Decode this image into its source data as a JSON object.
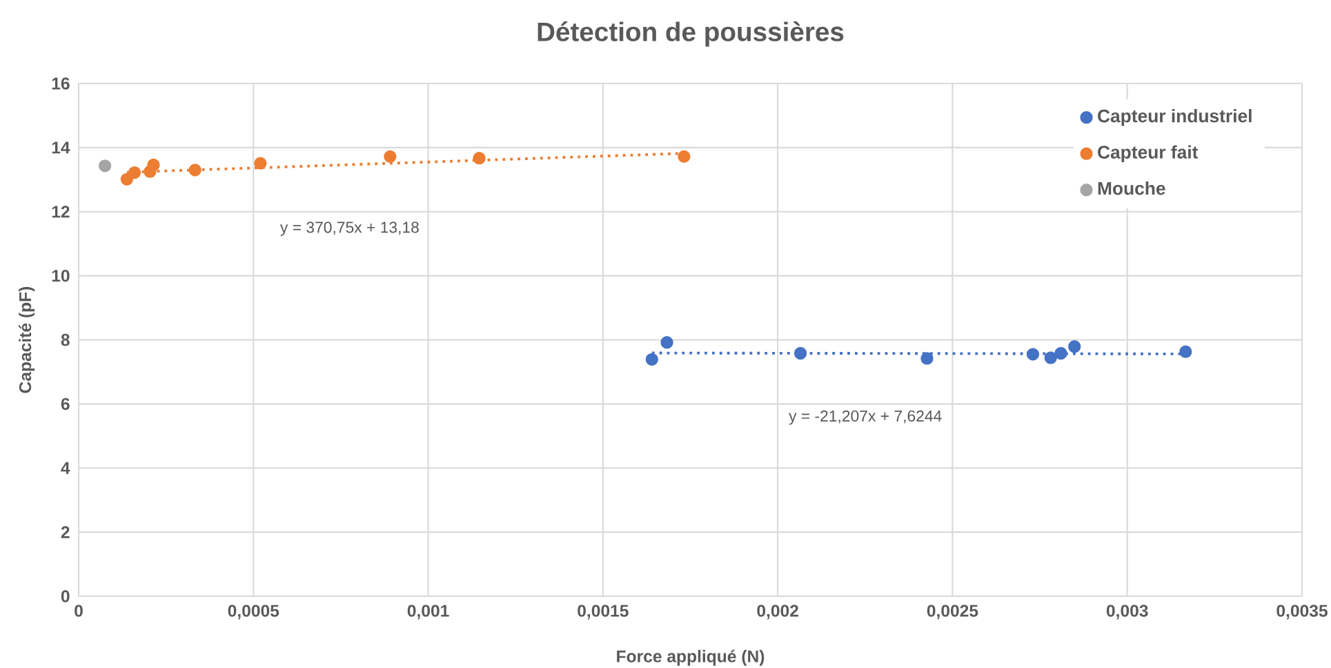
{
  "chart_data": {
    "type": "scatter",
    "title": "Détection de poussières",
    "xlabel": "Force appliqué (N)",
    "ylabel": "Capacité (pF)",
    "series": [
      {
        "name": "Capteur industriel",
        "marker": "circle",
        "color": "#4472c4",
        "x": [
          0.00164,
          0.001683,
          0.002065,
          0.002427,
          0.00273,
          0.002781,
          0.00281,
          0.002849,
          0.003167
        ],
        "values": [
          7.39,
          7.92,
          7.58,
          7.42,
          7.55,
          7.44,
          7.58,
          7.79,
          7.63
        ]
      },
      {
        "name": "Capteur fait",
        "marker": "circle",
        "color": "#ed7d31",
        "x": [
          0.000138,
          0.00016,
          0.000204,
          0.000214,
          0.000333,
          0.00052,
          0.000891,
          0.001146,
          0.001732
        ],
        "values": [
          13.01,
          13.22,
          13.25,
          13.46,
          13.3,
          13.51,
          13.72,
          13.67,
          13.72
        ]
      },
      {
        "name": "Mouche",
        "marker": "circle",
        "color": "#a5a5a5",
        "x": [
          7.53e-05
        ],
        "values": [
          13.43
        ]
      },
      {
        "type": "line",
        "marker": "none",
        "line_style": "dotted",
        "color": "#ed7d31",
        "x": [
          0.000138,
          0.001732
        ],
        "values": [
          13.23,
          13.82
        ]
      },
      {
        "type": "line",
        "marker": "none",
        "line_style": "dotted",
        "color": "#4472c4",
        "x": [
          0.00164,
          0.003167
        ],
        "values": [
          7.59,
          7.56
        ]
      }
    ],
    "annotations": [
      "y = 370,75x + 13,18",
      "y = -21,207x + 7,6244"
    ],
    "xlim": [
      0,
      0.0035
    ],
    "ylim": [
      0,
      16
    ],
    "xticks": [
      0,
      {
        "value": 0.0005,
        "label": "0,0005"
      },
      {
        "value": 0.001,
        "label": "0,001"
      },
      {
        "value": 0.0015,
        "label": "0,0015"
      },
      {
        "value": 0.002,
        "label": "0,002"
      },
      {
        "value": 0.0025,
        "label": "0,0025"
      },
      {
        "value": 0.003,
        "label": "0,003"
      },
      {
        "value": 0.0035,
        "label": "0,0035"
      }
    ],
    "yticks": [
      0,
      2,
      4,
      6,
      8,
      10,
      12,
      14,
      16
    ],
    "grid": true,
    "legend": "top right"
  }
}
